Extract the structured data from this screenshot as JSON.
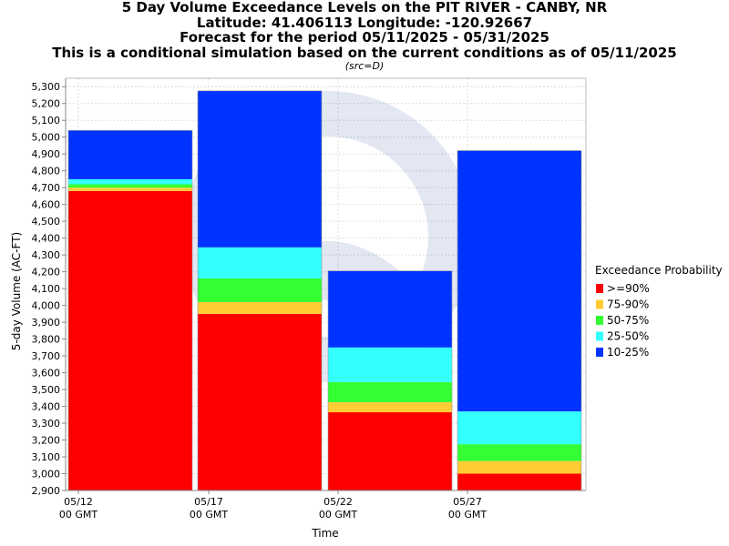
{
  "header": {
    "title_line1": "5 Day Volume Exceedance Levels on the PIT RIVER - CANBY, NR",
    "title_line2": "Latitude: 41.406113 Longitude: -120.92667",
    "title_line3": "Forecast for the period 05/11/2025 - 05/31/2025",
    "title_line4": "This is a conditional simulation based on the current conditions as of 05/11/2025",
    "source_note": "(src=D)"
  },
  "chart_data": {
    "type": "bar",
    "stacked": true,
    "xlabel": "Time",
    "ylabel": "5-day Volume (AC-FT)",
    "ylim": [
      2900,
      5350
    ],
    "yticks": [
      2900,
      3000,
      3100,
      3200,
      3300,
      3400,
      3500,
      3600,
      3700,
      3800,
      3900,
      4000,
      4100,
      4200,
      4300,
      4400,
      4500,
      4600,
      4700,
      4800,
      4900,
      5000,
      5100,
      5200,
      5300
    ],
    "xticks": [
      {
        "line1": "05/12",
        "line2": "00 GMT"
      },
      {
        "line1": "05/17",
        "line2": "00 GMT"
      },
      {
        "line1": "05/22",
        "line2": "00 GMT"
      },
      {
        "line1": "05/27",
        "line2": "00 GMT"
      }
    ],
    "grid": true,
    "legend_title": "Exceedance Probability",
    "legend_position": "right",
    "series": [
      {
        "name": ">=90%",
        "color": "#ff0000"
      },
      {
        "name": "75-90%",
        "color": "#ffcc33"
      },
      {
        "name": "50-75%",
        "color": "#33ff33"
      },
      {
        "name": "25-50%",
        "color": "#33ffff"
      },
      {
        "name": "10-25%",
        "color": "#0033ff"
      }
    ],
    "bars": [
      {
        "period": "05/12 - 05/17",
        "levels": [
          4680,
          4700,
          4720,
          4750,
          5040
        ]
      },
      {
        "period": "05/17 - 05/22",
        "levels": [
          3950,
          4020,
          4160,
          4345,
          5275
        ]
      },
      {
        "period": "05/22 - 05/27",
        "levels": [
          3365,
          3425,
          3545,
          3750,
          4205
        ]
      },
      {
        "period": "05/27 - 05/31",
        "levels": [
          3000,
          3075,
          3175,
          3370,
          4920
        ]
      }
    ]
  }
}
